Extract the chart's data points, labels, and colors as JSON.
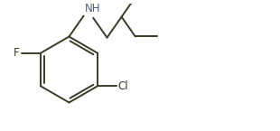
{
  "line_color": "#3a3a2a",
  "bg_color": "#ffffff",
  "label_color_F": "#3a3a2a",
  "label_color_Cl": "#3a3a2a",
  "label_color_NH": "#4a6080",
  "font_size_labels": 8.5,
  "line_width": 1.4,
  "figsize": [
    3.1,
    1.45
  ],
  "dpi": 100,
  "xlim": [
    0.0,
    10.0
  ],
  "ylim": [
    0.0,
    5.0
  ]
}
